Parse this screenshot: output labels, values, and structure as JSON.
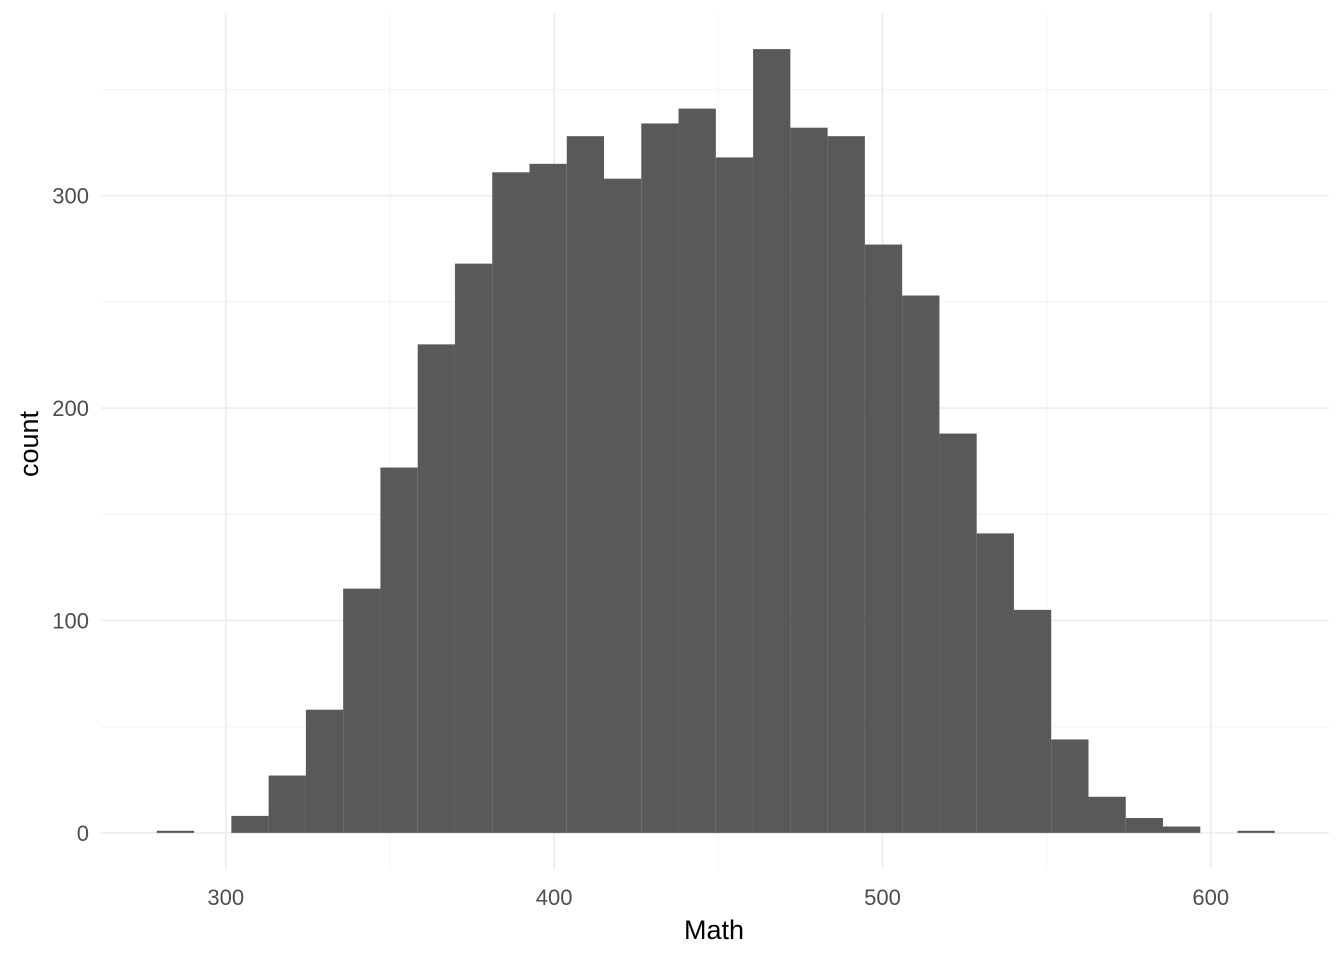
{
  "chart_data": {
    "type": "histogram",
    "title": "",
    "xlabel": "Math",
    "ylabel": "count",
    "bar_color": "#595959",
    "bin_width": 11.35,
    "bin_start": 279.0,
    "values": [
      1,
      0,
      8,
      27,
      58,
      115,
      172,
      230,
      268,
      311,
      315,
      328,
      308,
      334,
      341,
      318,
      369,
      332,
      328,
      277,
      253,
      188,
      141,
      105,
      44,
      17,
      7,
      3,
      0,
      1
    ],
    "xlim": [
      262,
      636
    ],
    "ylim": [
      -17,
      386
    ],
    "x_ticks": [
      300,
      400,
      500,
      600
    ],
    "x_tick_labels": [
      "300",
      "400",
      "500",
      "600"
    ],
    "y_ticks": [
      0,
      100,
      200,
      300
    ],
    "y_tick_labels": [
      "0",
      "100",
      "200",
      "300"
    ],
    "x_minor_ticks": [
      350,
      450,
      550
    ],
    "y_minor_ticks": [
      50,
      150,
      250,
      350
    ],
    "grid": true,
    "legend": "none"
  }
}
